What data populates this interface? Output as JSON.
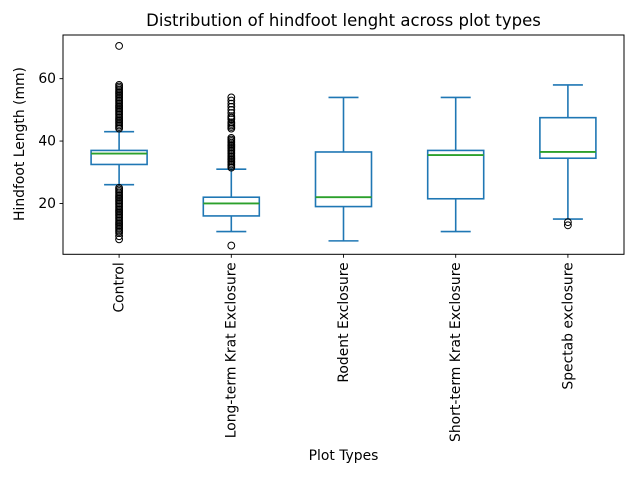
{
  "figure": {
    "background": "#ffffff"
  },
  "chart_data": {
    "type": "boxplot",
    "title": "Distribution of hindfoot lenght across plot types",
    "xlabel": "Plot Types",
    "ylabel": "Hindfoot Length (mm)",
    "ylim": [
      3.7,
      74.0
    ],
    "yticks": [
      20,
      40,
      60
    ],
    "grid": false,
    "legend_position": "none",
    "colors": {
      "box_whisker": "#1f77b4",
      "median": "#2ca02c",
      "flier_edge": "#000000",
      "axis": "#000000",
      "background": "#ffffff"
    },
    "categories": [
      "Control",
      "Long-term Krat Exclosure",
      "Rodent Exclosure",
      "Short-term Krat Exclosure",
      "Spectab exclosure"
    ],
    "series": [
      {
        "name": "Control",
        "whislo": 26,
        "q1": 32.5,
        "med": 36,
        "q3": 37,
        "whishi": 43,
        "fliers": [
          8.5,
          9.5,
          10.5,
          11,
          11.5,
          12,
          12.5,
          13,
          13.5,
          14,
          14.5,
          15,
          15.5,
          16,
          16.5,
          17,
          17.5,
          18,
          18.5,
          19,
          19.5,
          20,
          20.5,
          21,
          21.5,
          22,
          22.5,
          23,
          23.5,
          24,
          24.5,
          25,
          44,
          44.5,
          45,
          45.5,
          46,
          46.5,
          47,
          47.5,
          48,
          48.5,
          49,
          49.5,
          50,
          50.5,
          51,
          51.5,
          52,
          52.5,
          53,
          53.5,
          54,
          54.5,
          55,
          55.5,
          56,
          56.5,
          57,
          57.5,
          58,
          70.5
        ]
      },
      {
        "name": "Long-term Krat Exclosure",
        "whislo": 11,
        "q1": 16,
        "med": 20,
        "q3": 22,
        "whishi": 31,
        "fliers": [
          6.5,
          31.5,
          32,
          32.5,
          33,
          33.5,
          34,
          34.5,
          35,
          35.5,
          36,
          36.5,
          37,
          37.5,
          38,
          38.5,
          39,
          39.5,
          40,
          40.5,
          41,
          44,
          44.5,
          45,
          45.5,
          46,
          47,
          47.5,
          48,
          49,
          50,
          51,
          52,
          53,
          54
        ]
      },
      {
        "name": "Rodent Exclosure",
        "whislo": 8,
        "q1": 19,
        "med": 22,
        "q3": 36.5,
        "whishi": 54,
        "fliers": []
      },
      {
        "name": "Short-term Krat Exclosure",
        "whislo": 11,
        "q1": 21.5,
        "med": 35.5,
        "q3": 37,
        "whishi": 54,
        "fliers": []
      },
      {
        "name": "Spectab exclosure",
        "whislo": 15,
        "q1": 34.5,
        "med": 36.5,
        "q3": 47.5,
        "whishi": 58,
        "fliers": [
          13,
          14
        ]
      }
    ]
  }
}
